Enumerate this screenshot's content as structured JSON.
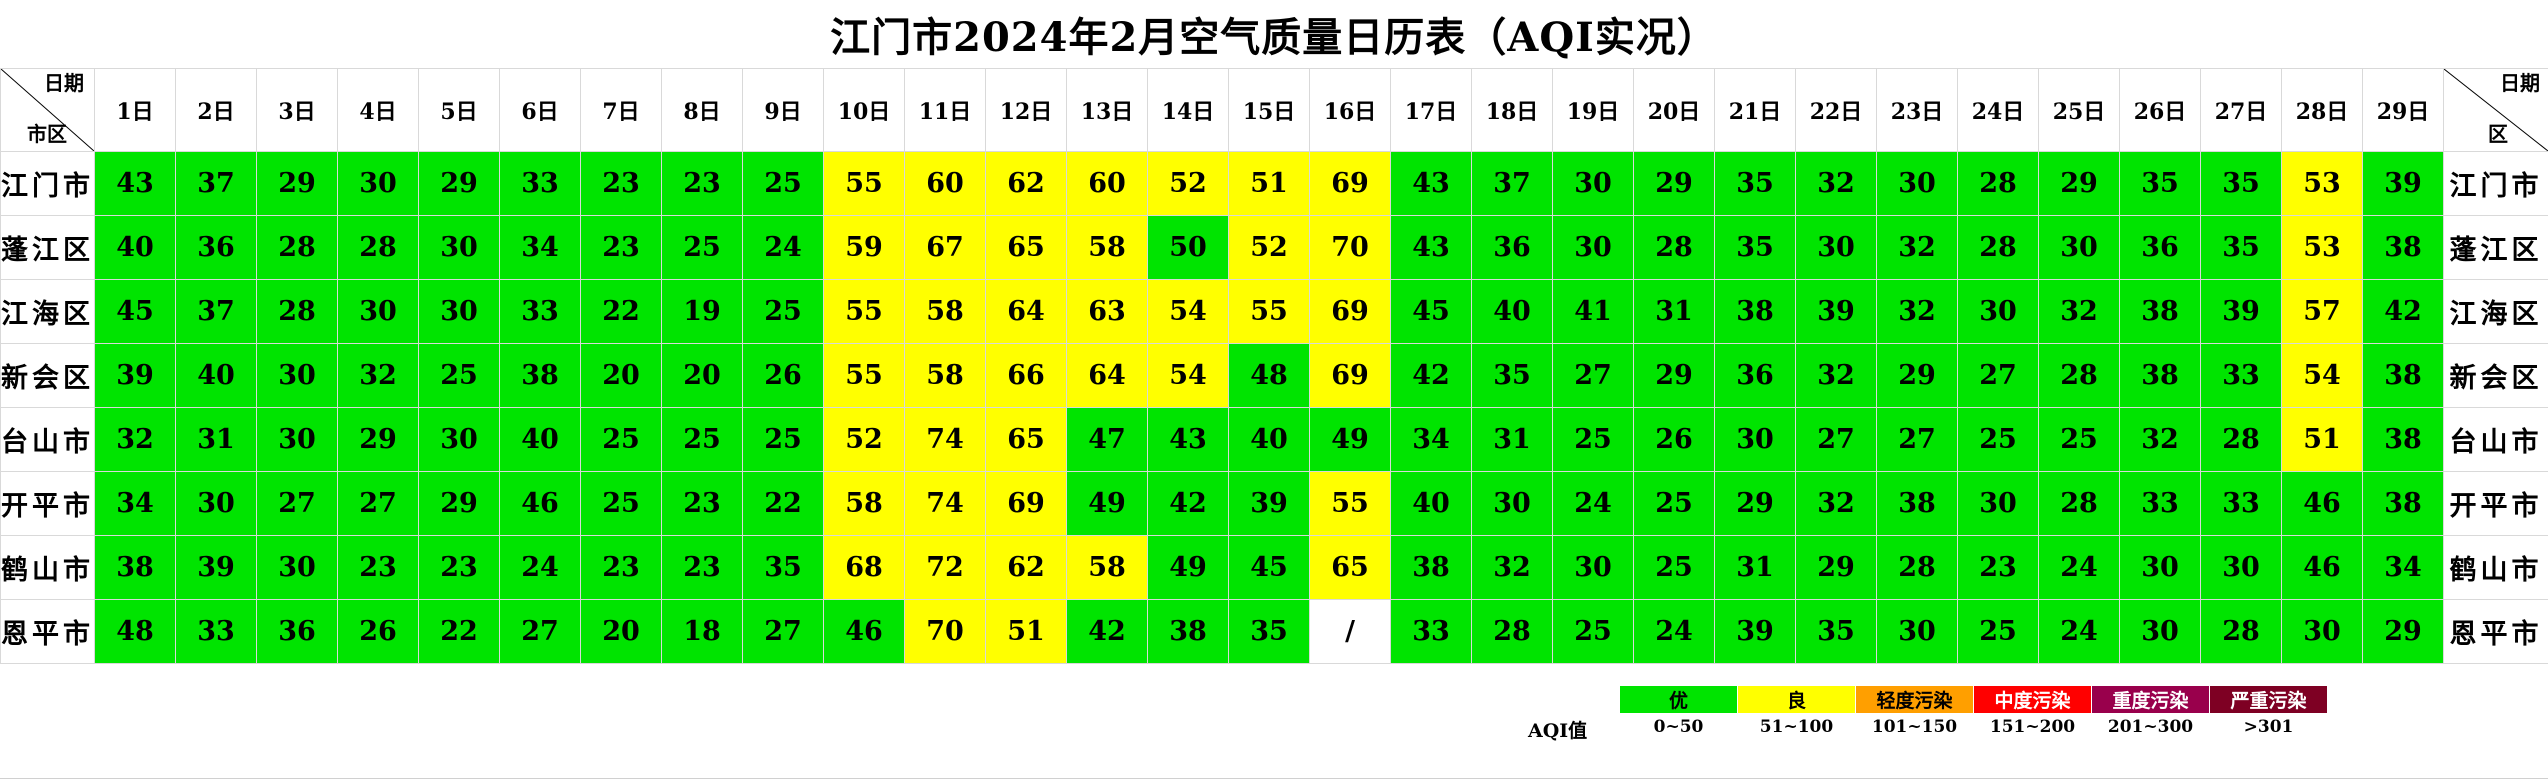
{
  "title": "江门市2024年2月空气质量日历表（AQI实况）",
  "header": {
    "corner_date": "日期",
    "corner_date_right": "日期",
    "corner_region": "市区",
    "corner_region_right": "区"
  },
  "days": [
    "1日",
    "2日",
    "3日",
    "4日",
    "5日",
    "6日",
    "7日",
    "8日",
    "9日",
    "10日",
    "11日",
    "12日",
    "13日",
    "14日",
    "15日",
    "16日",
    "17日",
    "18日",
    "19日",
    "20日",
    "21日",
    "22日",
    "23日",
    "24日",
    "25日",
    "26日",
    "27日",
    "28日",
    "29日"
  ],
  "rows": [
    {
      "name": "江门市",
      "values": [
        "43",
        "37",
        "29",
        "30",
        "29",
        "33",
        "23",
        "23",
        "25",
        "55",
        "60",
        "62",
        "60",
        "52",
        "51",
        "69",
        "43",
        "37",
        "30",
        "29",
        "35",
        "32",
        "30",
        "28",
        "29",
        "35",
        "35",
        "53",
        "39"
      ]
    },
    {
      "name": "蓬江区",
      "values": [
        "40",
        "36",
        "28",
        "28",
        "30",
        "34",
        "23",
        "25",
        "24",
        "59",
        "67",
        "65",
        "58",
        "50",
        "52",
        "70",
        "43",
        "36",
        "30",
        "28",
        "35",
        "30",
        "32",
        "28",
        "30",
        "36",
        "35",
        "53",
        "38"
      ]
    },
    {
      "name": "江海区",
      "values": [
        "45",
        "37",
        "28",
        "30",
        "30",
        "33",
        "22",
        "19",
        "25",
        "55",
        "58",
        "64",
        "63",
        "54",
        "55",
        "69",
        "45",
        "40",
        "41",
        "31",
        "38",
        "39",
        "32",
        "30",
        "32",
        "38",
        "39",
        "57",
        "42"
      ]
    },
    {
      "name": "新会区",
      "values": [
        "39",
        "40",
        "30",
        "32",
        "25",
        "38",
        "20",
        "20",
        "26",
        "55",
        "58",
        "66",
        "64",
        "54",
        "48",
        "69",
        "42",
        "35",
        "27",
        "29",
        "36",
        "32",
        "29",
        "27",
        "28",
        "38",
        "33",
        "54",
        "38"
      ]
    },
    {
      "name": "台山市",
      "values": [
        "32",
        "31",
        "30",
        "29",
        "30",
        "40",
        "25",
        "25",
        "25",
        "52",
        "74",
        "65",
        "47",
        "43",
        "40",
        "49",
        "34",
        "31",
        "25",
        "26",
        "30",
        "27",
        "27",
        "25",
        "25",
        "32",
        "28",
        "51",
        "38"
      ]
    },
    {
      "name": "开平市",
      "values": [
        "34",
        "30",
        "27",
        "27",
        "29",
        "46",
        "25",
        "23",
        "22",
        "58",
        "74",
        "69",
        "49",
        "42",
        "39",
        "55",
        "40",
        "30",
        "24",
        "25",
        "29",
        "32",
        "38",
        "30",
        "28",
        "33",
        "33",
        "46",
        "38"
      ]
    },
    {
      "name": "鹤山市",
      "values": [
        "38",
        "39",
        "30",
        "23",
        "23",
        "24",
        "23",
        "23",
        "35",
        "68",
        "72",
        "62",
        "58",
        "49",
        "45",
        "65",
        "38",
        "32",
        "30",
        "25",
        "31",
        "29",
        "28",
        "23",
        "24",
        "30",
        "30",
        "46",
        "34"
      ]
    },
    {
      "name": "恩平市",
      "values": [
        "48",
        "33",
        "36",
        "26",
        "22",
        "27",
        "20",
        "18",
        "27",
        "46",
        "70",
        "51",
        "42",
        "38",
        "35",
        "/",
        "33",
        "28",
        "25",
        "24",
        "39",
        "35",
        "30",
        "25",
        "24",
        "30",
        "28",
        "30",
        "29"
      ]
    }
  ],
  "legend": {
    "label": "AQI值",
    "items": [
      {
        "name": "优",
        "range": "0~50",
        "color": "#00e400"
      },
      {
        "name": "良",
        "range": "51~100",
        "color": "#ffff00"
      },
      {
        "name": "轻度污染",
        "range": "101~150",
        "color": "#ff9f00"
      },
      {
        "name": "中度污染",
        "range": "151~200",
        "color": "#ff0000"
      },
      {
        "name": "重度污染",
        "range": "201~300",
        "color": "#99004c"
      },
      {
        "name": "严重污染",
        "range": ">301",
        "color": "#7e0023"
      }
    ]
  }
}
